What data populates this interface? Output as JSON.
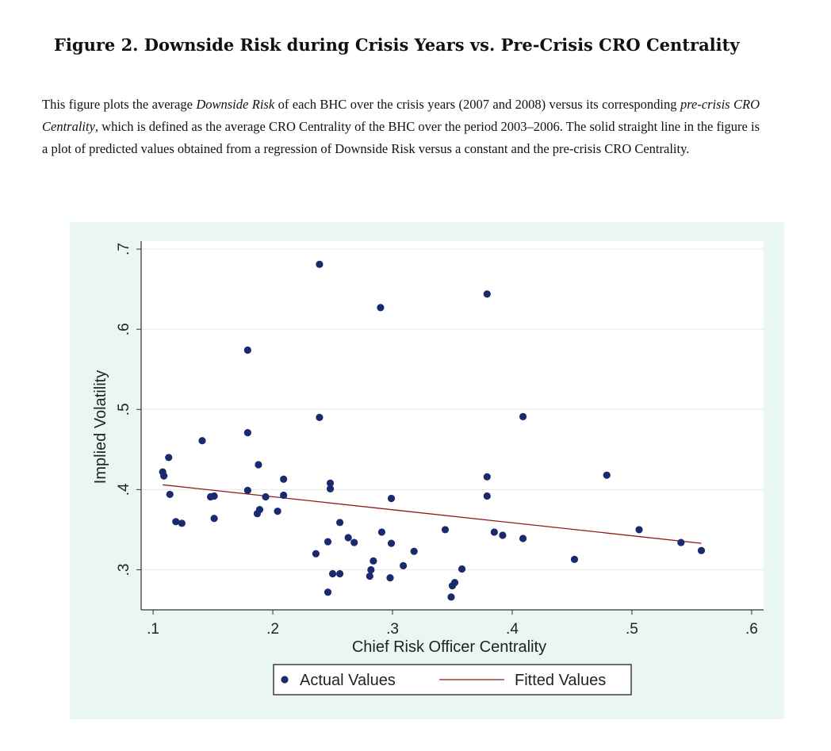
{
  "title": "Figure 2. Downside Risk during Crisis Years vs. Pre-Crisis CRO Centrality",
  "caption": {
    "p1": "This figure plots the average ",
    "em1": "Downside Risk",
    "p2": " of each BHC over the crisis years (2007 and 2008) versus its corresponding ",
    "em2": "pre-crisis CRO Centrality",
    "p3": ", which is defined as the average CRO Centrality of the BHC over the period 2003–2006.  The solid straight line in the figure is a plot of predicted values obtained from a regression of Downside Risk versus a constant and the pre-crisis CRO Centrality."
  },
  "colors": {
    "figure_bg": "#eaf6f1",
    "plot_bg": "#ffffff",
    "points": "#1a2a6c",
    "fitted_line": "#8b1a1a"
  },
  "chart_data": {
    "type": "scatter",
    "xlabel": "Chief Risk Officer Centrality",
    "ylabel": "Implied Volatility",
    "xlim": [
      0.09,
      0.61
    ],
    "ylim": [
      0.25,
      0.71
    ],
    "xticks": [
      0.1,
      0.2,
      0.3,
      0.4,
      0.5,
      0.6
    ],
    "xtick_labels": [
      ".1",
      ".2",
      ".3",
      ".4",
      ".5",
      ".6"
    ],
    "yticks": [
      0.3,
      0.4,
      0.5,
      0.6,
      0.7
    ],
    "ytick_labels": [
      ".3",
      ".4",
      ".5",
      ".6",
      ".7"
    ],
    "grid": "horizontal",
    "legend": {
      "position": "bottom",
      "entries": [
        "Actual Values",
        "Fitted Values"
      ]
    },
    "series": [
      {
        "name": "Actual Values",
        "kind": "scatter",
        "points": [
          [
            0.108,
            0.422
          ],
          [
            0.109,
            0.417
          ],
          [
            0.113,
            0.44
          ],
          [
            0.114,
            0.394
          ],
          [
            0.119,
            0.36
          ],
          [
            0.124,
            0.358
          ],
          [
            0.141,
            0.461
          ],
          [
            0.148,
            0.391
          ],
          [
            0.151,
            0.392
          ],
          [
            0.151,
            0.364
          ],
          [
            0.179,
            0.574
          ],
          [
            0.179,
            0.471
          ],
          [
            0.179,
            0.399
          ],
          [
            0.187,
            0.37
          ],
          [
            0.188,
            0.431
          ],
          [
            0.189,
            0.375
          ],
          [
            0.194,
            0.391
          ],
          [
            0.204,
            0.373
          ],
          [
            0.209,
            0.413
          ],
          [
            0.209,
            0.393
          ],
          [
            0.236,
            0.32
          ],
          [
            0.239,
            0.681
          ],
          [
            0.239,
            0.49
          ],
          [
            0.246,
            0.272
          ],
          [
            0.246,
            0.335
          ],
          [
            0.248,
            0.408
          ],
          [
            0.248,
            0.401
          ],
          [
            0.25,
            0.295
          ],
          [
            0.256,
            0.359
          ],
          [
            0.256,
            0.295
          ],
          [
            0.263,
            0.34
          ],
          [
            0.268,
            0.334
          ],
          [
            0.281,
            0.292
          ],
          [
            0.282,
            0.3
          ],
          [
            0.284,
            0.311
          ],
          [
            0.29,
            0.627
          ],
          [
            0.291,
            0.347
          ],
          [
            0.298,
            0.29
          ],
          [
            0.299,
            0.389
          ],
          [
            0.299,
            0.333
          ],
          [
            0.309,
            0.305
          ],
          [
            0.318,
            0.323
          ],
          [
            0.344,
            0.35
          ],
          [
            0.349,
            0.266
          ],
          [
            0.35,
            0.28
          ],
          [
            0.352,
            0.284
          ],
          [
            0.358,
            0.301
          ],
          [
            0.379,
            0.644
          ],
          [
            0.379,
            0.416
          ],
          [
            0.379,
            0.392
          ],
          [
            0.385,
            0.347
          ],
          [
            0.392,
            0.343
          ],
          [
            0.409,
            0.491
          ],
          [
            0.409,
            0.339
          ],
          [
            0.452,
            0.313
          ],
          [
            0.479,
            0.418
          ],
          [
            0.506,
            0.35
          ],
          [
            0.541,
            0.334
          ],
          [
            0.558,
            0.324
          ]
        ]
      },
      {
        "name": "Fitted Values",
        "kind": "line",
        "points": [
          [
            0.108,
            0.406
          ],
          [
            0.558,
            0.333
          ]
        ]
      }
    ]
  }
}
